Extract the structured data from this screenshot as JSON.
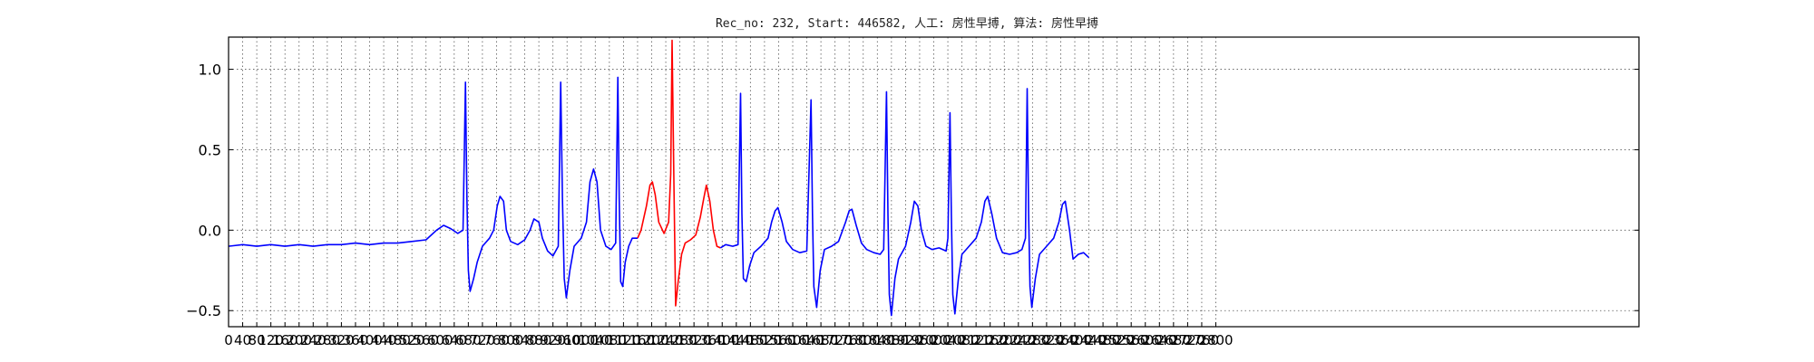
{
  "chart_data": {
    "type": "line",
    "title": "Rec_no: 232, Start: 446582, 人工: 房性早搏, 算法: 房性早搏",
    "xlabel": "",
    "ylabel": "",
    "xlim": [
      0,
      4000
    ],
    "ylim": [
      -0.6,
      1.2
    ],
    "yticks": [
      -0.5,
      0.0,
      0.5,
      1.0
    ],
    "ytick_labels": [
      "−0.5",
      "0.0",
      "0.5",
      "1.0"
    ],
    "xtick_step": 40,
    "xtick_labels": [
      "0",
      "40",
      "80",
      "120",
      "160",
      "200",
      "240",
      "280",
      "320",
      "360",
      "400",
      "440",
      "480",
      "520",
      "560",
      "600",
      "640",
      "680",
      "720",
      "760",
      "800",
      "840",
      "880",
      "920",
      "960",
      "1000",
      "1040",
      "1080",
      "1120",
      "1160",
      "1200",
      "1240",
      "1280",
      "1320",
      "1360",
      "1400",
      "1440",
      "1480",
      "1520",
      "1560",
      "1600",
      "1640",
      "1680",
      "1720",
      "1760",
      "1800",
      "1840",
      "1880",
      "1920",
      "1960",
      "2000",
      "2040",
      "2080",
      "2120",
      "2160",
      "2200",
      "2240",
      "2280",
      "2320",
      "2360",
      "2400",
      "2440",
      "2480",
      "2520",
      "2560",
      "2600",
      "2640",
      "2680",
      "2720",
      "2760",
      "2800"
    ],
    "grid": true,
    "series": [
      {
        "color": "#0000ff",
        "segments": [
          [
            [
              0,
              -0.1
            ],
            [
              40,
              -0.09
            ],
            [
              80,
              -0.1
            ],
            [
              120,
              -0.09
            ],
            [
              160,
              -0.1
            ],
            [
              200,
              -0.09
            ],
            [
              240,
              -0.1
            ],
            [
              280,
              -0.09
            ],
            [
              320,
              -0.09
            ],
            [
              360,
              -0.08
            ],
            [
              400,
              -0.09
            ],
            [
              440,
              -0.08
            ],
            [
              480,
              -0.08
            ],
            [
              520,
              -0.07
            ],
            [
              560,
              -0.06
            ],
            [
              590,
              0.0
            ],
            [
              610,
              0.03
            ],
            [
              630,
              0.01
            ],
            [
              650,
              -0.02
            ],
            [
              665,
              0.0
            ],
            [
              672,
              0.92
            ],
            [
              676,
              0.2
            ],
            [
              680,
              -0.25
            ],
            [
              685,
              -0.38
            ],
            [
              695,
              -0.3
            ],
            [
              705,
              -0.2
            ],
            [
              720,
              -0.1
            ],
            [
              740,
              -0.05
            ],
            [
              752,
              0.0
            ],
            [
              762,
              0.15
            ],
            [
              770,
              0.21
            ],
            [
              780,
              0.18
            ],
            [
              788,
              0.0
            ],
            [
              800,
              -0.07
            ],
            [
              820,
              -0.09
            ],
            [
              840,
              -0.06
            ],
            [
              855,
              0.0
            ],
            [
              866,
              0.07
            ],
            [
              880,
              0.05
            ],
            [
              890,
              -0.05
            ],
            [
              905,
              -0.13
            ],
            [
              920,
              -0.16
            ],
            [
              935,
              -0.1
            ],
            [
              942,
              0.92
            ],
            [
              947,
              0.2
            ],
            [
              952,
              -0.3
            ],
            [
              958,
              -0.42
            ],
            [
              968,
              -0.25
            ],
            [
              980,
              -0.1
            ],
            [
              1000,
              -0.05
            ],
            [
              1015,
              0.05
            ],
            [
              1025,
              0.3
            ],
            [
              1035,
              0.38
            ],
            [
              1045,
              0.3
            ],
            [
              1055,
              0.0
            ],
            [
              1070,
              -0.1
            ],
            [
              1085,
              -0.12
            ],
            [
              1098,
              -0.08
            ],
            [
              1104,
              0.95
            ],
            [
              1108,
              0.2
            ],
            [
              1112,
              -0.32
            ],
            [
              1118,
              -0.35
            ],
            [
              1125,
              -0.2
            ],
            [
              1135,
              -0.1
            ],
            [
              1145,
              -0.05
            ],
            [
              1160,
              -0.05
            ]
          ]
        ]
      },
      {
        "color": "#ff0000",
        "segments": [
          [
            [
              1160,
              -0.05
            ],
            [
              1170,
              0.0
            ],
            [
              1185,
              0.15
            ],
            [
              1195,
              0.28
            ],
            [
              1202,
              0.3
            ],
            [
              1210,
              0.22
            ],
            [
              1220,
              0.05
            ],
            [
              1235,
              -0.02
            ],
            [
              1248,
              0.05
            ],
            [
              1254,
              0.35
            ],
            [
              1258,
              1.18
            ],
            [
              1263,
              0.3
            ],
            [
              1268,
              -0.47
            ],
            [
              1275,
              -0.32
            ],
            [
              1285,
              -0.15
            ],
            [
              1295,
              -0.08
            ],
            [
              1310,
              -0.06
            ],
            [
              1325,
              -0.03
            ],
            [
              1338,
              0.08
            ],
            [
              1348,
              0.2
            ],
            [
              1355,
              0.28
            ],
            [
              1365,
              0.18
            ],
            [
              1375,
              0.0
            ],
            [
              1385,
              -0.1
            ],
            [
              1395,
              -0.11
            ]
          ]
        ]
      },
      {
        "color": "#0000ff",
        "segments": [
          [
            [
              1395,
              -0.11
            ],
            [
              1410,
              -0.09
            ],
            [
              1430,
              -0.1
            ],
            [
              1445,
              -0.09
            ],
            [
              1452,
              0.85
            ],
            [
              1456,
              0.1
            ],
            [
              1460,
              -0.3
            ],
            [
              1468,
              -0.32
            ],
            [
              1478,
              -0.22
            ],
            [
              1490,
              -0.14
            ],
            [
              1510,
              -0.1
            ],
            [
              1530,
              -0.05
            ],
            [
              1540,
              0.05
            ],
            [
              1550,
              0.12
            ],
            [
              1558,
              0.14
            ],
            [
              1570,
              0.05
            ],
            [
              1582,
              -0.07
            ],
            [
              1600,
              -0.12
            ],
            [
              1620,
              -0.14
            ],
            [
              1640,
              -0.13
            ],
            [
              1652,
              0.81
            ],
            [
              1656,
              0.1
            ],
            [
              1660,
              -0.35
            ],
            [
              1668,
              -0.48
            ],
            [
              1678,
              -0.25
            ],
            [
              1690,
              -0.12
            ],
            [
              1710,
              -0.1
            ],
            [
              1730,
              -0.07
            ],
            [
              1750,
              0.05
            ],
            [
              1760,
              0.12
            ],
            [
              1768,
              0.13
            ],
            [
              1780,
              0.03
            ],
            [
              1795,
              -0.08
            ],
            [
              1810,
              -0.12
            ],
            [
              1830,
              -0.14
            ],
            [
              1848,
              -0.15
            ],
            [
              1858,
              -0.12
            ],
            [
              1866,
              0.86
            ],
            [
              1870,
              0.1
            ],
            [
              1874,
              -0.4
            ],
            [
              1880,
              -0.53
            ],
            [
              1890,
              -0.3
            ],
            [
              1900,
              -0.18
            ],
            [
              1920,
              -0.1
            ],
            [
              1935,
              0.05
            ],
            [
              1945,
              0.18
            ],
            [
              1955,
              0.15
            ],
            [
              1965,
              0.0
            ],
            [
              1978,
              -0.1
            ],
            [
              1995,
              -0.12
            ],
            [
              2015,
              -0.11
            ],
            [
              2035,
              -0.13
            ],
            [
              2040,
              -0.05
            ],
            [
              2046,
              0.73
            ],
            [
              2050,
              0.1
            ],
            [
              2054,
              -0.4
            ],
            [
              2060,
              -0.52
            ],
            [
              2070,
              -0.3
            ],
            [
              2080,
              -0.15
            ],
            [
              2100,
              -0.1
            ],
            [
              2120,
              -0.05
            ],
            [
              2135,
              0.05
            ],
            [
              2145,
              0.18
            ],
            [
              2153,
              0.21
            ],
            [
              2165,
              0.1
            ],
            [
              2178,
              -0.05
            ],
            [
              2195,
              -0.14
            ],
            [
              2215,
              -0.15
            ],
            [
              2235,
              -0.14
            ],
            [
              2250,
              -0.12
            ],
            [
              2260,
              -0.05
            ],
            [
              2265,
              0.88
            ],
            [
              2269,
              0.1
            ],
            [
              2273,
              -0.35
            ],
            [
              2278,
              -0.48
            ],
            [
              2288,
              -0.3
            ],
            [
              2300,
              -0.15
            ],
            [
              2320,
              -0.1
            ],
            [
              2340,
              -0.05
            ],
            [
              2355,
              0.05
            ],
            [
              2365,
              0.16
            ],
            [
              2373,
              0.18
            ],
            [
              2385,
              0.0
            ],
            [
              2395,
              -0.18
            ],
            [
              2410,
              -0.15
            ],
            [
              2425,
              -0.14
            ],
            [
              2440,
              -0.17
            ]
          ]
        ]
      }
    ]
  }
}
